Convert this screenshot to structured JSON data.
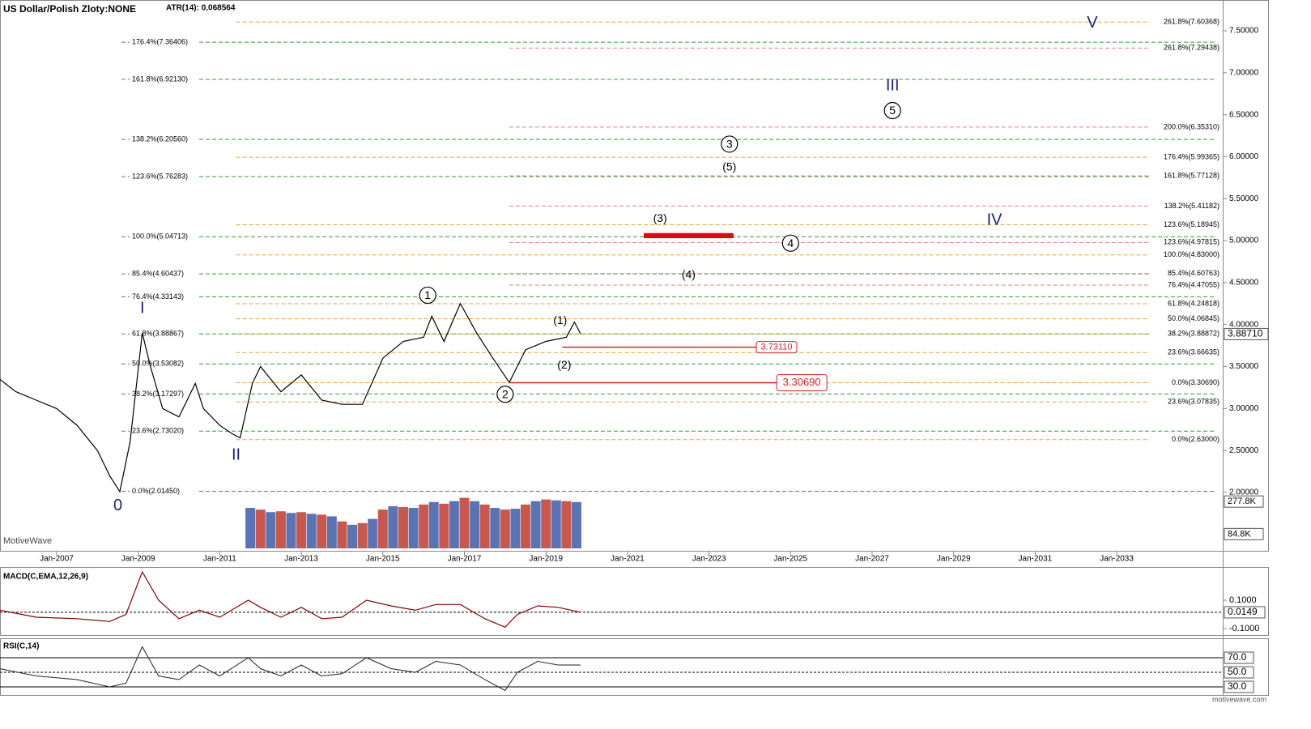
{
  "chart_data": {
    "type": "line",
    "title": "US Dollar/Polish Zloty:NONE",
    "subtitle": "ATR(14): 0.068564",
    "watermark": "MotiveWave",
    "footer": "motivewave.com",
    "color": "#000000",
    "xlim": [
      2005.61,
      2035.6
    ],
    "ylim": [
      1.305,
      7.867
    ],
    "xticks": [
      {
        "value": 2007,
        "label": "Jan-2007"
      },
      {
        "value": 2009,
        "label": "Jan-2009"
      },
      {
        "value": 2011,
        "label": "Jan-2011"
      },
      {
        "value": 2013,
        "label": "Jan-2013"
      },
      {
        "value": 2015,
        "label": "Jan-2015"
      },
      {
        "value": 2017,
        "label": "Jan-2017"
      },
      {
        "value": 2019,
        "label": "Jan-2019"
      },
      {
        "value": 2021,
        "label": "Jan-2021"
      },
      {
        "value": 2023,
        "label": "Jan-2023"
      },
      {
        "value": 2025,
        "label": "Jan-2025"
      },
      {
        "value": 2027,
        "label": "Jan-2027"
      },
      {
        "value": 2029,
        "label": "Jan-2029"
      },
      {
        "value": 2031,
        "label": "Jan-2031"
      },
      {
        "value": 2033,
        "label": "Jan-2033"
      }
    ],
    "yticks": [
      {
        "value": 2,
        "label": "2.00000"
      },
      {
        "value": 2.5,
        "label": "2.50000"
      },
      {
        "value": 3,
        "label": "3.00000"
      },
      {
        "value": 3.5,
        "label": "3.50000"
      },
      {
        "value": 4,
        "label": "4.00000"
      },
      {
        "value": 4.5,
        "label": "4.50000"
      },
      {
        "value": 5,
        "label": "5.00000"
      },
      {
        "value": 5.5,
        "label": "5.50000"
      },
      {
        "value": 6,
        "label": "6.00000"
      },
      {
        "value": 6.5,
        "label": "6.50000"
      },
      {
        "value": 7,
        "label": "7.00000"
      },
      {
        "value": 7.5,
        "label": "7.50000"
      }
    ],
    "x": [
      2005.6,
      2006.0,
      2006.5,
      2007.0,
      2007.5,
      2008.0,
      2008.3,
      2008.55,
      2008.8,
      2009.1,
      2009.3,
      2009.6,
      2010.0,
      2010.4,
      2010.6,
      2011.0,
      2011.3,
      2011.5,
      2011.8,
      2012.0,
      2012.5,
      2013.0,
      2013.5,
      2014.0,
      2014.5,
      2015.0,
      2015.5,
      2016.0,
      2016.2,
      2016.5,
      2016.9,
      2017.3,
      2017.7,
      2018.1,
      2018.5,
      2019.0,
      2019.5,
      2019.7,
      2019.85
    ],
    "values": [
      3.35,
      3.2,
      3.1,
      3.0,
      2.8,
      2.5,
      2.2,
      2.01,
      2.6,
      3.9,
      3.5,
      3.0,
      2.9,
      3.3,
      3.0,
      2.8,
      2.7,
      2.65,
      3.3,
      3.5,
      3.2,
      3.4,
      3.1,
      3.05,
      3.05,
      3.6,
      3.8,
      3.85,
      4.1,
      3.8,
      4.25,
      3.9,
      3.6,
      3.31,
      3.7,
      3.8,
      3.85,
      4.03,
      3.89
    ],
    "last": {
      "value": 3.8871,
      "label": "3.88710"
    },
    "fib_sets": [
      {
        "color": "#2ca02c",
        "levels": [
          {
            "value": 7.36406,
            "label": "176.4%(7.36406)"
          },
          {
            "value": 6.9213,
            "label": "161.8%(6.92130)"
          },
          {
            "value": 6.2056,
            "label": "138.2%(6.20560)"
          },
          {
            "value": 5.76283,
            "label": "123.6%(5.76283)"
          },
          {
            "value": 5.04713,
            "label": "100.0%(5.04713)"
          },
          {
            "value": 4.60437,
            "label": "85.4%(4.60437)"
          },
          {
            "value": 4.33143,
            "label": "76.4%(4.33143)"
          },
          {
            "value": 3.88867,
            "label": "61.8%(3.88867)"
          },
          {
            "value": 3.53082,
            "label": "50.0%(3.53082)"
          },
          {
            "value": 3.17297,
            "label": "38.2%(3.17297)"
          },
          {
            "value": 2.7302,
            "label": "23.6%(2.73020)"
          },
          {
            "value": 2.0145,
            "label": "0.0%(2.01450)"
          }
        ]
      },
      {
        "color": "#f0a030",
        "levels": [
          {
            "value": 7.60368,
            "label": "261.8%(7.60368)"
          },
          {
            "value": 5.99365,
            "label": "176.4%(5.99365)"
          },
          {
            "value": 5.18945,
            "label": "123.6%(5.18945)"
          },
          {
            "value": 4.83,
            "label": "100.0%(4.83000)"
          },
          {
            "value": 4.24818,
            "label": "61.8%(4.24818)"
          },
          {
            "value": 4.06845,
            "label": "50.0%(4.06845)"
          },
          {
            "value": 3.88872,
            "label": "38.2%(3.88872)"
          },
          {
            "value": 3.66635,
            "label": "23.6%(3.66635)"
          },
          {
            "value": 3.3069,
            "label": "0.0%(3.30690)"
          },
          {
            "value": 3.07835,
            "label": "23.6%(3.07835)"
          },
          {
            "value": 2.63,
            "label": "0.0%(2.63000)"
          }
        ]
      },
      {
        "color": "#e08080",
        "levels": [
          {
            "value": 7.29438,
            "label": "261.8%(7.29438)"
          },
          {
            "value": 6.3531,
            "label": "200.0%(6.35310)"
          },
          {
            "value": 5.77128,
            "label": "161.8%(5.77128)"
          },
          {
            "value": 5.41182,
            "label": "138.2%(5.41182)"
          },
          {
            "value": 4.97815,
            "label": "123.6%(4.97815)"
          },
          {
            "value": 4.60763,
            "label": "85.4%(4.60763)"
          },
          {
            "value": 4.47055,
            "label": "76.4%(4.47055)"
          }
        ]
      }
    ],
    "waves": [
      {
        "label": "0",
        "x": 2008.5,
        "y": 1.85,
        "color": "#1a237e"
      },
      {
        "label": "I",
        "x": 2009.1,
        "y": 4.2,
        "color": "#1a237e"
      },
      {
        "label": "II",
        "x": 2011.4,
        "y": 2.45,
        "color": "#1a237e"
      },
      {
        "label": "1",
        "x": 2016.1,
        "y": 4.35,
        "color": "#000000",
        "circled": true
      },
      {
        "label": "2",
        "x": 2018.0,
        "y": 3.17,
        "color": "#000000",
        "circled": true
      },
      {
        "label": "(1)",
        "x": 2019.35,
        "y": 4.05,
        "color": "#000000"
      },
      {
        "label": "(2)",
        "x": 2019.45,
        "y": 3.52,
        "color": "#000000"
      },
      {
        "label": "(3)",
        "x": 2021.8,
        "y": 5.27,
        "color": "#000000"
      },
      {
        "label": "3",
        "x": 2023.5,
        "y": 6.15,
        "color": "#000000",
        "circled": true
      },
      {
        "label": "(5)",
        "x": 2023.5,
        "y": 5.88,
        "color": "#000000"
      },
      {
        "label": "(4)",
        "x": 2022.5,
        "y": 4.6,
        "color": "#000000"
      },
      {
        "label": "4",
        "x": 2025.0,
        "y": 4.97,
        "color": "#000000",
        "circled": true
      },
      {
        "label": "III",
        "x": 2027.5,
        "y": 6.85,
        "color": "#1a237e"
      },
      {
        "label": "5",
        "x": 2027.5,
        "y": 6.55,
        "color": "#000000",
        "circled": true
      },
      {
        "label": "IV",
        "x": 2030.0,
        "y": 5.25,
        "color": "#1a237e"
      },
      {
        "label": "V",
        "x": 2032.4,
        "y": 7.6,
        "color": "#1a237e"
      }
    ],
    "zones": [
      {
        "x": [
          2021.4,
          2023.6
        ],
        "y": [
          5.03,
          5.09
        ],
        "color": "#f00000"
      }
    ],
    "price_lines": [
      {
        "value": 3.7311,
        "label": "3.73110",
        "x": [
          2019.4,
          2024.2
        ]
      },
      {
        "value": 3.3069,
        "label": "3.30690",
        "x": [
          2018.1,
          2024.7
        ]
      }
    ],
    "volume": {
      "ylim": [
        0,
        370000
      ],
      "yticks": [
        {
          "value": 277800,
          "label": "277.8K"
        },
        {
          "value": 84800,
          "label": "84.8K"
        }
      ],
      "x": [
        2011.75,
        2012.0,
        2012.25,
        2012.5,
        2012.75,
        2013.0,
        2013.25,
        2013.5,
        2013.75,
        2014.0,
        2014.25,
        2014.5,
        2014.75,
        2015.0,
        2015.25,
        2015.5,
        2015.75,
        2016.0,
        2016.25,
        2016.5,
        2016.75,
        2017.0,
        2017.25,
        2017.5,
        2017.75,
        2018.0,
        2018.25,
        2018.5,
        2018.75,
        2019.0,
        2019.25,
        2019.5,
        2019.75
      ],
      "values": [
        240000,
        230000,
        215000,
        220000,
        210000,
        215000,
        205000,
        200000,
        190000,
        160000,
        140000,
        150000,
        175000,
        230000,
        250000,
        245000,
        240000,
        260000,
        275000,
        265000,
        280000,
        300000,
        280000,
        260000,
        240000,
        230000,
        235000,
        260000,
        280000,
        290000,
        285000,
        280000,
        275000
      ]
    },
    "macd": {
      "title": "MACD(C,EMA,12,26,9)",
      "ylim": [
        -0.151,
        0.334
      ],
      "yticks": [
        {
          "value": 0.1,
          "label": "0.1000"
        },
        {
          "value": -0.1,
          "label": "-0.1000"
        }
      ],
      "last": {
        "value": 0.0149,
        "label": "0.0149"
      },
      "x": [
        2005.6,
        2006.5,
        2007.5,
        2008.3,
        2008.7,
        2009.1,
        2009.5,
        2010.0,
        2010.5,
        2011.0,
        2011.7,
        2012.0,
        2012.5,
        2013.0,
        2013.5,
        2014.0,
        2014.6,
        2015.2,
        2015.8,
        2016.3,
        2016.9,
        2017.5,
        2018.0,
        2018.3,
        2018.8,
        2019.3,
        2019.85
      ],
      "values": [
        0.03,
        -0.02,
        -0.03,
        -0.05,
        0.0,
        0.3,
        0.1,
        -0.03,
        0.03,
        -0.02,
        0.1,
        0.05,
        -0.02,
        0.05,
        -0.03,
        -0.02,
        0.1,
        0.06,
        0.03,
        0.07,
        0.07,
        -0.03,
        -0.09,
        0.0,
        0.06,
        0.05,
        0.0149
      ]
    },
    "rsi": {
      "title": "RSI(C,14)",
      "ylim": [
        18.9,
        96.7
      ],
      "yticks": [
        {
          "value": 70,
          "label": "70.0"
        },
        {
          "value": 50,
          "label": "50.0"
        },
        {
          "value": 30,
          "label": "30.0"
        }
      ],
      "x": [
        2005.6,
        2006.5,
        2007.5,
        2008.3,
        2008.7,
        2009.1,
        2009.5,
        2010.0,
        2010.5,
        2011.0,
        2011.7,
        2012.0,
        2012.5,
        2013.0,
        2013.5,
        2014.0,
        2014.6,
        2015.2,
        2015.8,
        2016.3,
        2016.9,
        2017.5,
        2018.0,
        2018.3,
        2018.8,
        2019.3,
        2019.85
      ],
      "values": [
        55,
        45,
        40,
        30,
        35,
        85,
        45,
        40,
        60,
        45,
        70,
        55,
        45,
        60,
        45,
        48,
        70,
        55,
        50,
        65,
        60,
        40,
        25,
        50,
        65,
        60,
        60
      ]
    }
  }
}
